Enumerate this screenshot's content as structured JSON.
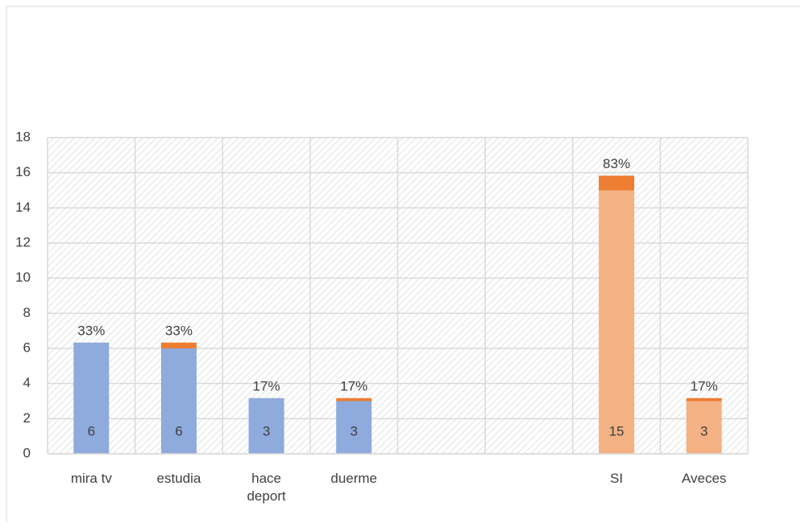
{
  "chart_data": {
    "type": "bar",
    "categories": [
      "mira tv",
      "estudia",
      "hace deport",
      "duerme",
      null,
      null,
      "SI",
      "Aveces"
    ],
    "series": [
      {
        "values": [
          6,
          6,
          3,
          3,
          null,
          null,
          15,
          3
        ],
        "colors": [
          "#8faadc",
          "#8faadc",
          "#8faadc",
          "#8faadc",
          null,
          null,
          "#f4b183",
          "#f4b183"
        ]
      },
      {
        "values": [
          0.33,
          0.33,
          0.17,
          0.17,
          null,
          null,
          0.83,
          0.17
        ],
        "value_labels": [
          "33%",
          "33%",
          "17%",
          "17%",
          null,
          null,
          "83%",
          "17%"
        ],
        "colors": [
          "#8faadc",
          "#ed7d31",
          "#8faadc",
          "#ed7d31",
          null,
          null,
          "#ed7d31",
          "#ed7d31"
        ]
      }
    ],
    "ylim": [
      0,
      18
    ],
    "yticks": [
      0,
      2,
      4,
      6,
      8,
      10,
      12,
      14,
      16,
      18
    ],
    "grid": true
  }
}
